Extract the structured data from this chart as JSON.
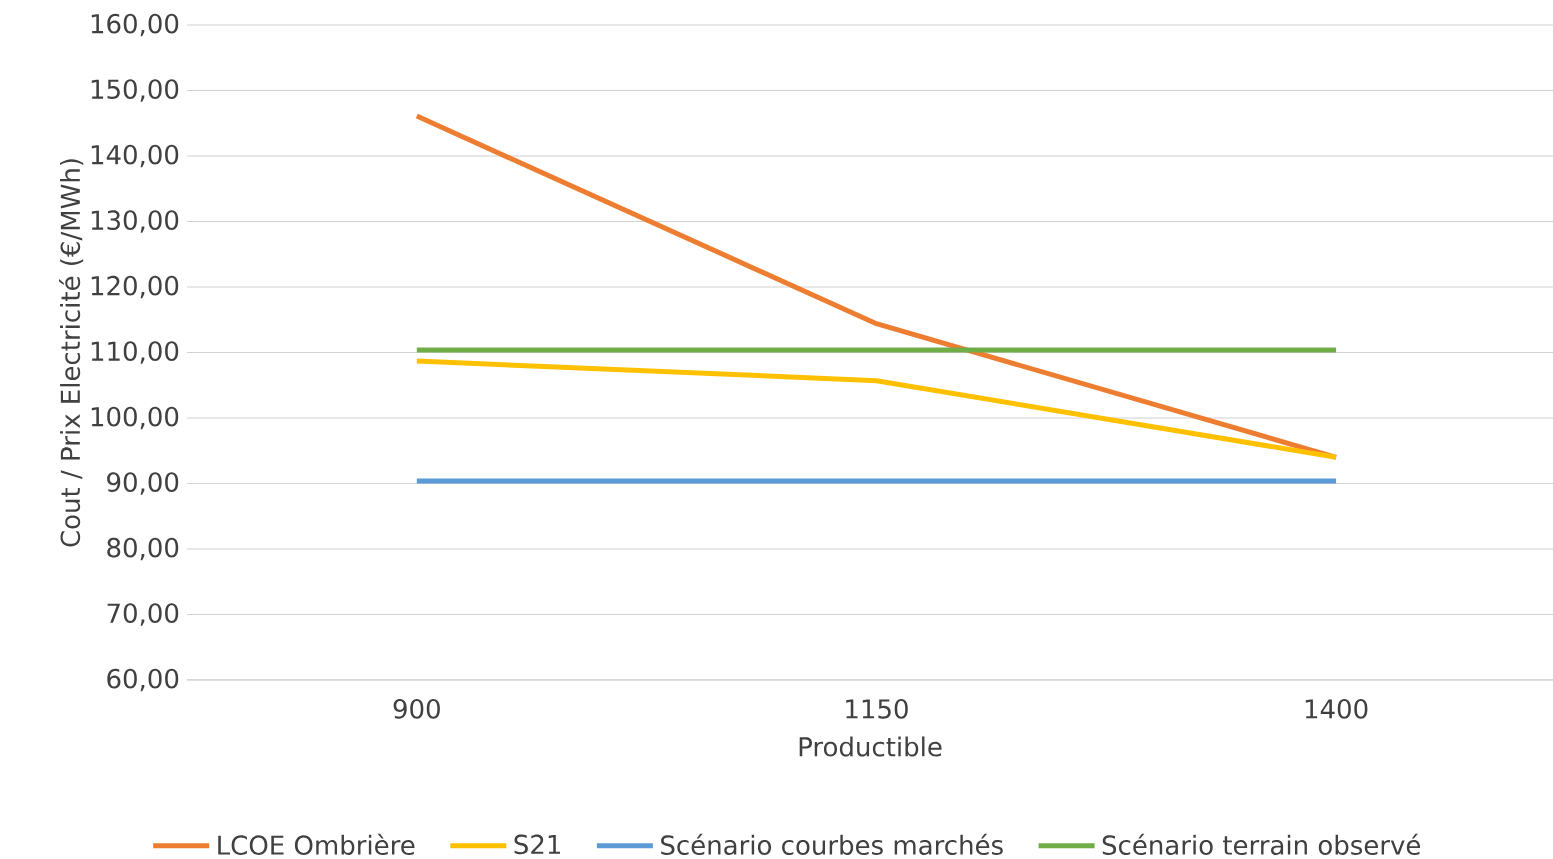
{
  "chart_data": {
    "type": "line",
    "xlabel": "Productible",
    "ylabel": "Cout / Prix Electricité (€/MWh)",
    "categories": [
      "900",
      "1150",
      "1400"
    ],
    "series": [
      {
        "name": "LCOE Ombrière",
        "color": "#ed7d31",
        "values": [
          146.1,
          114.4,
          94.0
        ]
      },
      {
        "name": "S21",
        "color": "#ffc000",
        "values": [
          108.7,
          105.7,
          94.0
        ]
      },
      {
        "name": "Scénario courbes marchés",
        "color": "#5b9bd5",
        "values": [
          90.4,
          90.4,
          90.4
        ]
      },
      {
        "name": "Scénario terrain observé",
        "color": "#70ad47",
        "values": [
          110.4,
          110.4,
          110.4
        ]
      }
    ],
    "ylim": [
      60,
      160
    ],
    "yticks": [
      {
        "value": 60,
        "label": "60,00"
      },
      {
        "value": 70,
        "label": "70,00"
      },
      {
        "value": 80,
        "label": "80,00"
      },
      {
        "value": 90,
        "label": "90,00"
      },
      {
        "value": 100,
        "label": "100,00"
      },
      {
        "value": 110,
        "label": "110,00"
      },
      {
        "value": 120,
        "label": "120,00"
      },
      {
        "value": 130,
        "label": "130,00"
      },
      {
        "value": 140,
        "label": "140,00"
      },
      {
        "value": 150,
        "label": "150,00"
      },
      {
        "value": 160,
        "label": "160,00"
      }
    ],
    "grid": "y",
    "legend": "bottom",
    "marker": "none",
    "line_style": "solid"
  }
}
